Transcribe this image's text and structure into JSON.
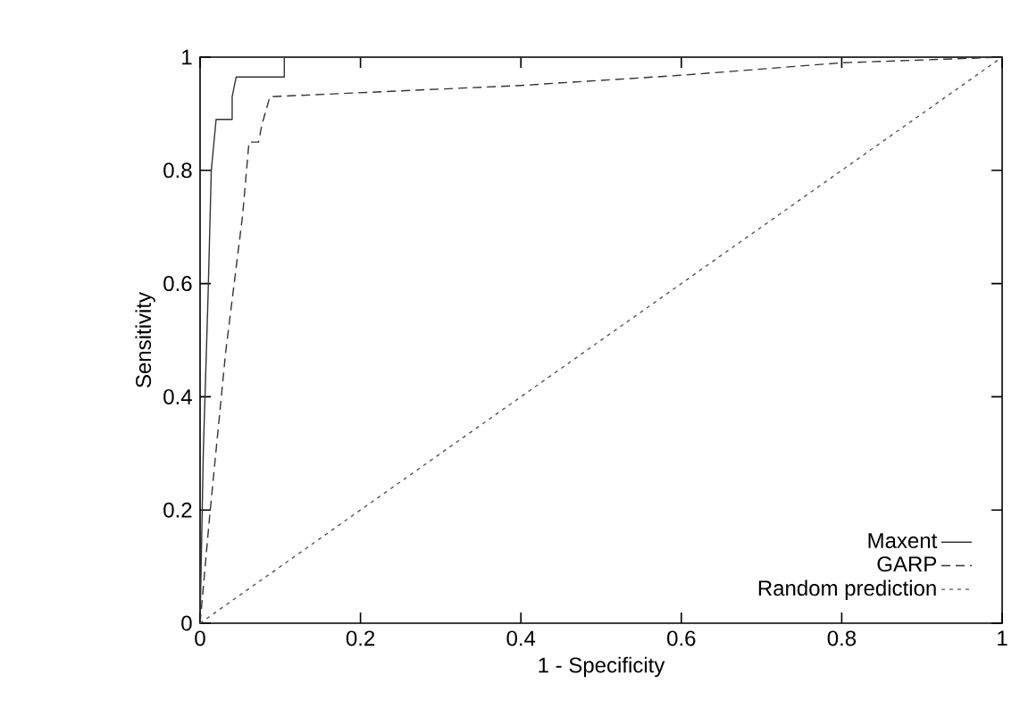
{
  "chart_data": {
    "type": "line",
    "xlabel": "1 - Specificity",
    "ylabel": "Sensitivity",
    "xlim": [
      0,
      1
    ],
    "ylim": [
      0,
      1
    ],
    "xticks": [
      0,
      0.2,
      0.4,
      0.6,
      0.8,
      1
    ],
    "yticks": [
      0,
      0.2,
      0.4,
      0.6,
      0.8,
      1
    ],
    "grid": false,
    "legend": "bottom right",
    "marker": "none",
    "series": [
      {
        "name": "Maxent",
        "color": "#333333",
        "line_style": "solid",
        "x": [
          0,
          0.004,
          0.01,
          0.014,
          0.02,
          0.04,
          0.04,
          0.045,
          0.105,
          0.105,
          1
        ],
        "values": [
          0,
          0.3,
          0.58,
          0.8,
          0.89,
          0.89,
          0.93,
          0.965,
          0.965,
          1,
          1
        ]
      },
      {
        "name": "GARP",
        "color": "#333333",
        "line_style": "dashed",
        "x": [
          0,
          0.012,
          0.032,
          0.053,
          0.061,
          0.073,
          0.077,
          0.087,
          0.4,
          0.6,
          0.8,
          1
        ],
        "values": [
          0,
          0.19,
          0.48,
          0.72,
          0.85,
          0.85,
          0.88,
          0.93,
          0.95,
          0.968,
          0.99,
          1
        ]
      },
      {
        "name": "Random prediction",
        "color": "#555555",
        "line_style": "dotted",
        "x": [
          0,
          1
        ],
        "values": [
          0,
          1
        ]
      }
    ]
  }
}
